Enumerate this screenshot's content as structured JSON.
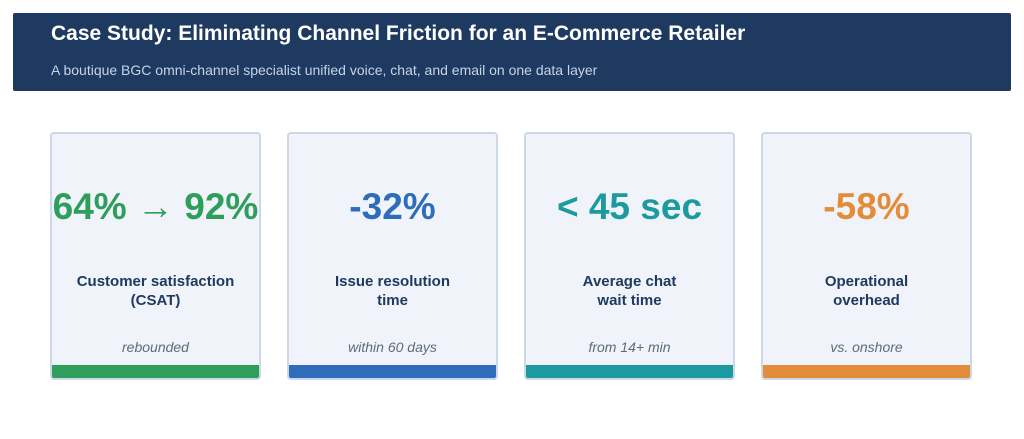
{
  "header": {
    "title": "Case Study: Eliminating Channel Friction for an E-Commerce Retailer",
    "subtitle": "A boutique BGC omni-channel specialist unified voice, chat, and email on one data layer"
  },
  "colors": {
    "banner": "#1f3a60",
    "green": "#2e9e5b",
    "blue": "#2f6dbb",
    "teal": "#1b9aa0",
    "orange": "#e38d3b"
  },
  "metrics": [
    {
      "value": "64% → 92%",
      "label_line1": "Customer satisfaction",
      "label_line2": "(CSAT)",
      "note": "rebounded",
      "color": "#2e9e5b"
    },
    {
      "value": "-32%",
      "label_line1": "Issue resolution",
      "label_line2": "time",
      "note": "within 60 days",
      "color": "#2f6dbb"
    },
    {
      "value": "< 45 sec",
      "label_line1": "Average chat",
      "label_line2": "wait time",
      "note": "from 14+ min",
      "color": "#1b9aa0"
    },
    {
      "value": "-58%",
      "label_line1": "Operational",
      "label_line2": "overhead",
      "note": "vs. onshore",
      "color": "#e38d3b"
    }
  ]
}
